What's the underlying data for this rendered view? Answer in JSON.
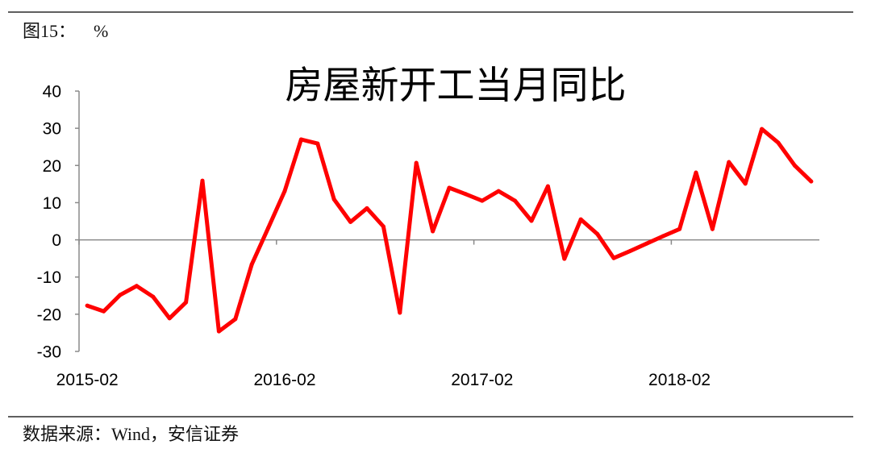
{
  "header": {
    "figure_label": "图15：",
    "unit": "%"
  },
  "footer": {
    "source": "数据来源：Wind，安信证券"
  },
  "colors": {
    "axis": "#8a8a8a",
    "rule": "#2a2a2a"
  },
  "chart_data": {
    "type": "line",
    "title": "房屋新开工当月同比",
    "ylim": [
      -30,
      40
    ],
    "yticks": [
      40,
      30,
      20,
      10,
      0,
      -10,
      -20,
      -30
    ],
    "xticks": [
      "2015-02",
      "2016-02",
      "2017-02",
      "2018-02"
    ],
    "grid": false,
    "legend": "none",
    "x": [
      "2015-02",
      "2015-03",
      "2015-04",
      "2015-05",
      "2015-06",
      "2015-07",
      "2015-08",
      "2015-09",
      "2015-10",
      "2015-11",
      "2015-12",
      "2016-01",
      "2016-02",
      "2016-03",
      "2016-04",
      "2016-05",
      "2016-06",
      "2016-07",
      "2016-08",
      "2016-09",
      "2016-10",
      "2016-11",
      "2016-12",
      "2017-01",
      "2017-02",
      "2017-03",
      "2017-04",
      "2017-05",
      "2017-06",
      "2017-07",
      "2017-08",
      "2017-09",
      "2017-10",
      "2017-11",
      "2017-12",
      "2018-01",
      "2018-02",
      "2018-03",
      "2018-04",
      "2018-05",
      "2018-06",
      "2018-07",
      "2018-08",
      "2018-09",
      "2018-10"
    ],
    "series": [
      {
        "color": "#ff0000",
        "values": [
          -17.7,
          -19.2,
          -14.8,
          -12.4,
          -15.3,
          -21.1,
          -16.8,
          15.9,
          -24.6,
          -21.3,
          -6.6,
          3.2,
          13.1,
          27.0,
          25.9,
          10.9,
          4.8,
          8.5,
          3.6,
          -19.6,
          20.7,
          2.3,
          14.0,
          12.3,
          10.5,
          13.1,
          10.5,
          5.1,
          14.4,
          -5.1,
          5.5,
          1.6,
          -4.9,
          -3.0,
          -1.0,
          1.0,
          2.9,
          18.1,
          2.9,
          20.9,
          15.1,
          29.8,
          26.1,
          20.0,
          15.7
        ]
      }
    ]
  }
}
